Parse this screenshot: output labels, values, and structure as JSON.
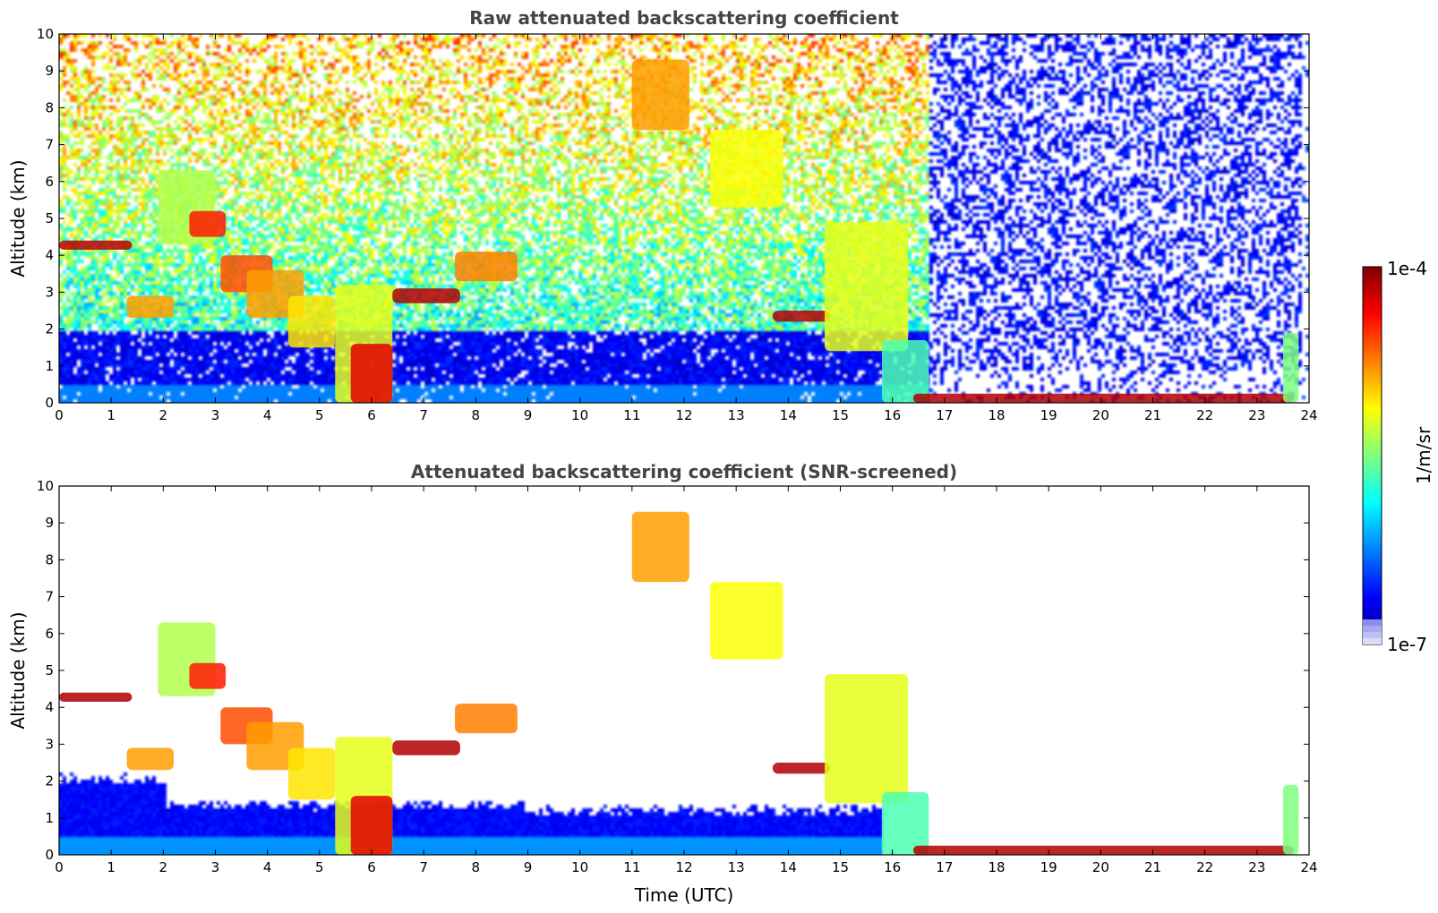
{
  "chart_data": [
    {
      "type": "heatmap",
      "title": "Raw attenuated backscattering coefficient",
      "xlabel": "",
      "ylabel": "Altitude (km)",
      "xlim": [
        0,
        24
      ],
      "ylim": [
        0,
        10
      ],
      "xticks": [
        "0",
        "1",
        "2",
        "3",
        "4",
        "5",
        "6",
        "7",
        "8",
        "9",
        "10",
        "11",
        "12",
        "13",
        "14",
        "15",
        "16",
        "17",
        "18",
        "19",
        "20",
        "21",
        "22",
        "23",
        "24"
      ],
      "yticks": [
        "0",
        "1",
        "2",
        "3",
        "4",
        "5",
        "6",
        "7",
        "8",
        "9",
        "10"
      ],
      "screened": false,
      "features": [
        {
          "t0": 0.0,
          "t1": 1.4,
          "z0": 4.15,
          "z1": 4.4,
          "v": 0.95
        },
        {
          "t0": 1.3,
          "t1": 2.2,
          "z0": 2.3,
          "z1": 2.9,
          "v": 0.72
        },
        {
          "t0": 1.9,
          "t1": 3.0,
          "z0": 4.3,
          "z1": 6.3,
          "v": 0.55
        },
        {
          "t0": 2.5,
          "t1": 3.2,
          "z0": 4.5,
          "z1": 5.2,
          "v": 0.85
        },
        {
          "t0": 3.1,
          "t1": 4.1,
          "z0": 3.0,
          "z1": 4.0,
          "v": 0.8
        },
        {
          "t0": 3.6,
          "t1": 4.7,
          "z0": 2.3,
          "z1": 3.6,
          "v": 0.72
        },
        {
          "t0": 4.4,
          "t1": 5.3,
          "z0": 1.5,
          "z1": 2.9,
          "v": 0.65
        },
        {
          "t0": 5.3,
          "t1": 6.4,
          "z0": 0.0,
          "z1": 3.2,
          "v": 0.6
        },
        {
          "t0": 5.6,
          "t1": 6.4,
          "z0": 0.0,
          "z1": 1.6,
          "v": 0.9
        },
        {
          "t0": 6.4,
          "t1": 7.7,
          "z0": 2.7,
          "z1": 3.1,
          "v": 0.95
        },
        {
          "t0": 7.6,
          "t1": 8.8,
          "z0": 3.3,
          "z1": 4.1,
          "v": 0.75
        },
        {
          "t0": 11.0,
          "t1": 12.1,
          "z0": 7.4,
          "z1": 9.3,
          "v": 0.72
        },
        {
          "t0": 12.5,
          "t1": 13.9,
          "z0": 5.3,
          "z1": 7.4,
          "v": 0.62
        },
        {
          "t0": 13.7,
          "t1": 14.8,
          "z0": 2.2,
          "z1": 2.5,
          "v": 0.95
        },
        {
          "t0": 14.7,
          "t1": 16.3,
          "z0": 1.4,
          "z1": 4.9,
          "v": 0.6
        },
        {
          "t0": 15.8,
          "t1": 16.7,
          "z0": 0.0,
          "z1": 1.7,
          "v": 0.45
        },
        {
          "t0": 16.4,
          "t1": 23.7,
          "z0": 0.0,
          "z1": 0.25,
          "v": 0.95
        },
        {
          "t0": 23.5,
          "t1": 23.8,
          "z0": 0.0,
          "z1": 1.9,
          "v": 0.5
        }
      ]
    },
    {
      "type": "heatmap",
      "title": "Attenuated backscattering coefficient (SNR-screened)",
      "xlabel": "Time (UTC)",
      "ylabel": "Altitude (km)",
      "xlim": [
        0,
        24
      ],
      "ylim": [
        0,
        10
      ],
      "xticks": [
        "0",
        "1",
        "2",
        "3",
        "4",
        "5",
        "6",
        "7",
        "8",
        "9",
        "10",
        "11",
        "12",
        "13",
        "14",
        "15",
        "16",
        "17",
        "18",
        "19",
        "20",
        "21",
        "22",
        "23",
        "24"
      ],
      "yticks": [
        "0",
        "1",
        "2",
        "3",
        "4",
        "5",
        "6",
        "7",
        "8",
        "9",
        "10"
      ],
      "screened": true,
      "features": [
        {
          "t0": 0.0,
          "t1": 1.4,
          "z0": 4.15,
          "z1": 4.4,
          "v": 0.95
        },
        {
          "t0": 1.3,
          "t1": 2.2,
          "z0": 2.3,
          "z1": 2.9,
          "v": 0.72
        },
        {
          "t0": 1.9,
          "t1": 3.0,
          "z0": 4.3,
          "z1": 6.3,
          "v": 0.55
        },
        {
          "t0": 2.5,
          "t1": 3.2,
          "z0": 4.5,
          "z1": 5.2,
          "v": 0.85
        },
        {
          "t0": 3.1,
          "t1": 4.1,
          "z0": 3.0,
          "z1": 4.0,
          "v": 0.8
        },
        {
          "t0": 3.6,
          "t1": 4.7,
          "z0": 2.3,
          "z1": 3.6,
          "v": 0.72
        },
        {
          "t0": 4.4,
          "t1": 5.3,
          "z0": 1.5,
          "z1": 2.9,
          "v": 0.65
        },
        {
          "t0": 5.3,
          "t1": 6.4,
          "z0": 0.0,
          "z1": 3.2,
          "v": 0.6
        },
        {
          "t0": 5.6,
          "t1": 6.4,
          "z0": 0.0,
          "z1": 1.6,
          "v": 0.9
        },
        {
          "t0": 6.4,
          "t1": 7.7,
          "z0": 2.7,
          "z1": 3.1,
          "v": 0.95
        },
        {
          "t0": 7.6,
          "t1": 8.8,
          "z0": 3.3,
          "z1": 4.1,
          "v": 0.75
        },
        {
          "t0": 11.0,
          "t1": 12.1,
          "z0": 7.4,
          "z1": 9.3,
          "v": 0.72
        },
        {
          "t0": 12.5,
          "t1": 13.9,
          "z0": 5.3,
          "z1": 7.4,
          "v": 0.62
        },
        {
          "t0": 13.7,
          "t1": 14.8,
          "z0": 2.2,
          "z1": 2.5,
          "v": 0.95
        },
        {
          "t0": 14.7,
          "t1": 16.3,
          "z0": 1.4,
          "z1": 4.9,
          "v": 0.6
        },
        {
          "t0": 15.8,
          "t1": 16.7,
          "z0": 0.0,
          "z1": 1.7,
          "v": 0.45
        },
        {
          "t0": 16.4,
          "t1": 23.7,
          "z0": 0.0,
          "z1": 0.25,
          "v": 0.95
        },
        {
          "t0": 23.5,
          "t1": 23.8,
          "z0": 0.0,
          "z1": 1.9,
          "v": 0.5
        }
      ]
    }
  ],
  "colorbar": {
    "label": "1/m/sr",
    "max_label": "1e-4",
    "min_label": "1e-7",
    "colormap": "jet",
    "stops": [
      "#00007f",
      "#0000ff",
      "#007fff",
      "#00ffff",
      "#7fff7f",
      "#ffff00",
      "#ff7f00",
      "#ff0000",
      "#7f0000"
    ]
  }
}
